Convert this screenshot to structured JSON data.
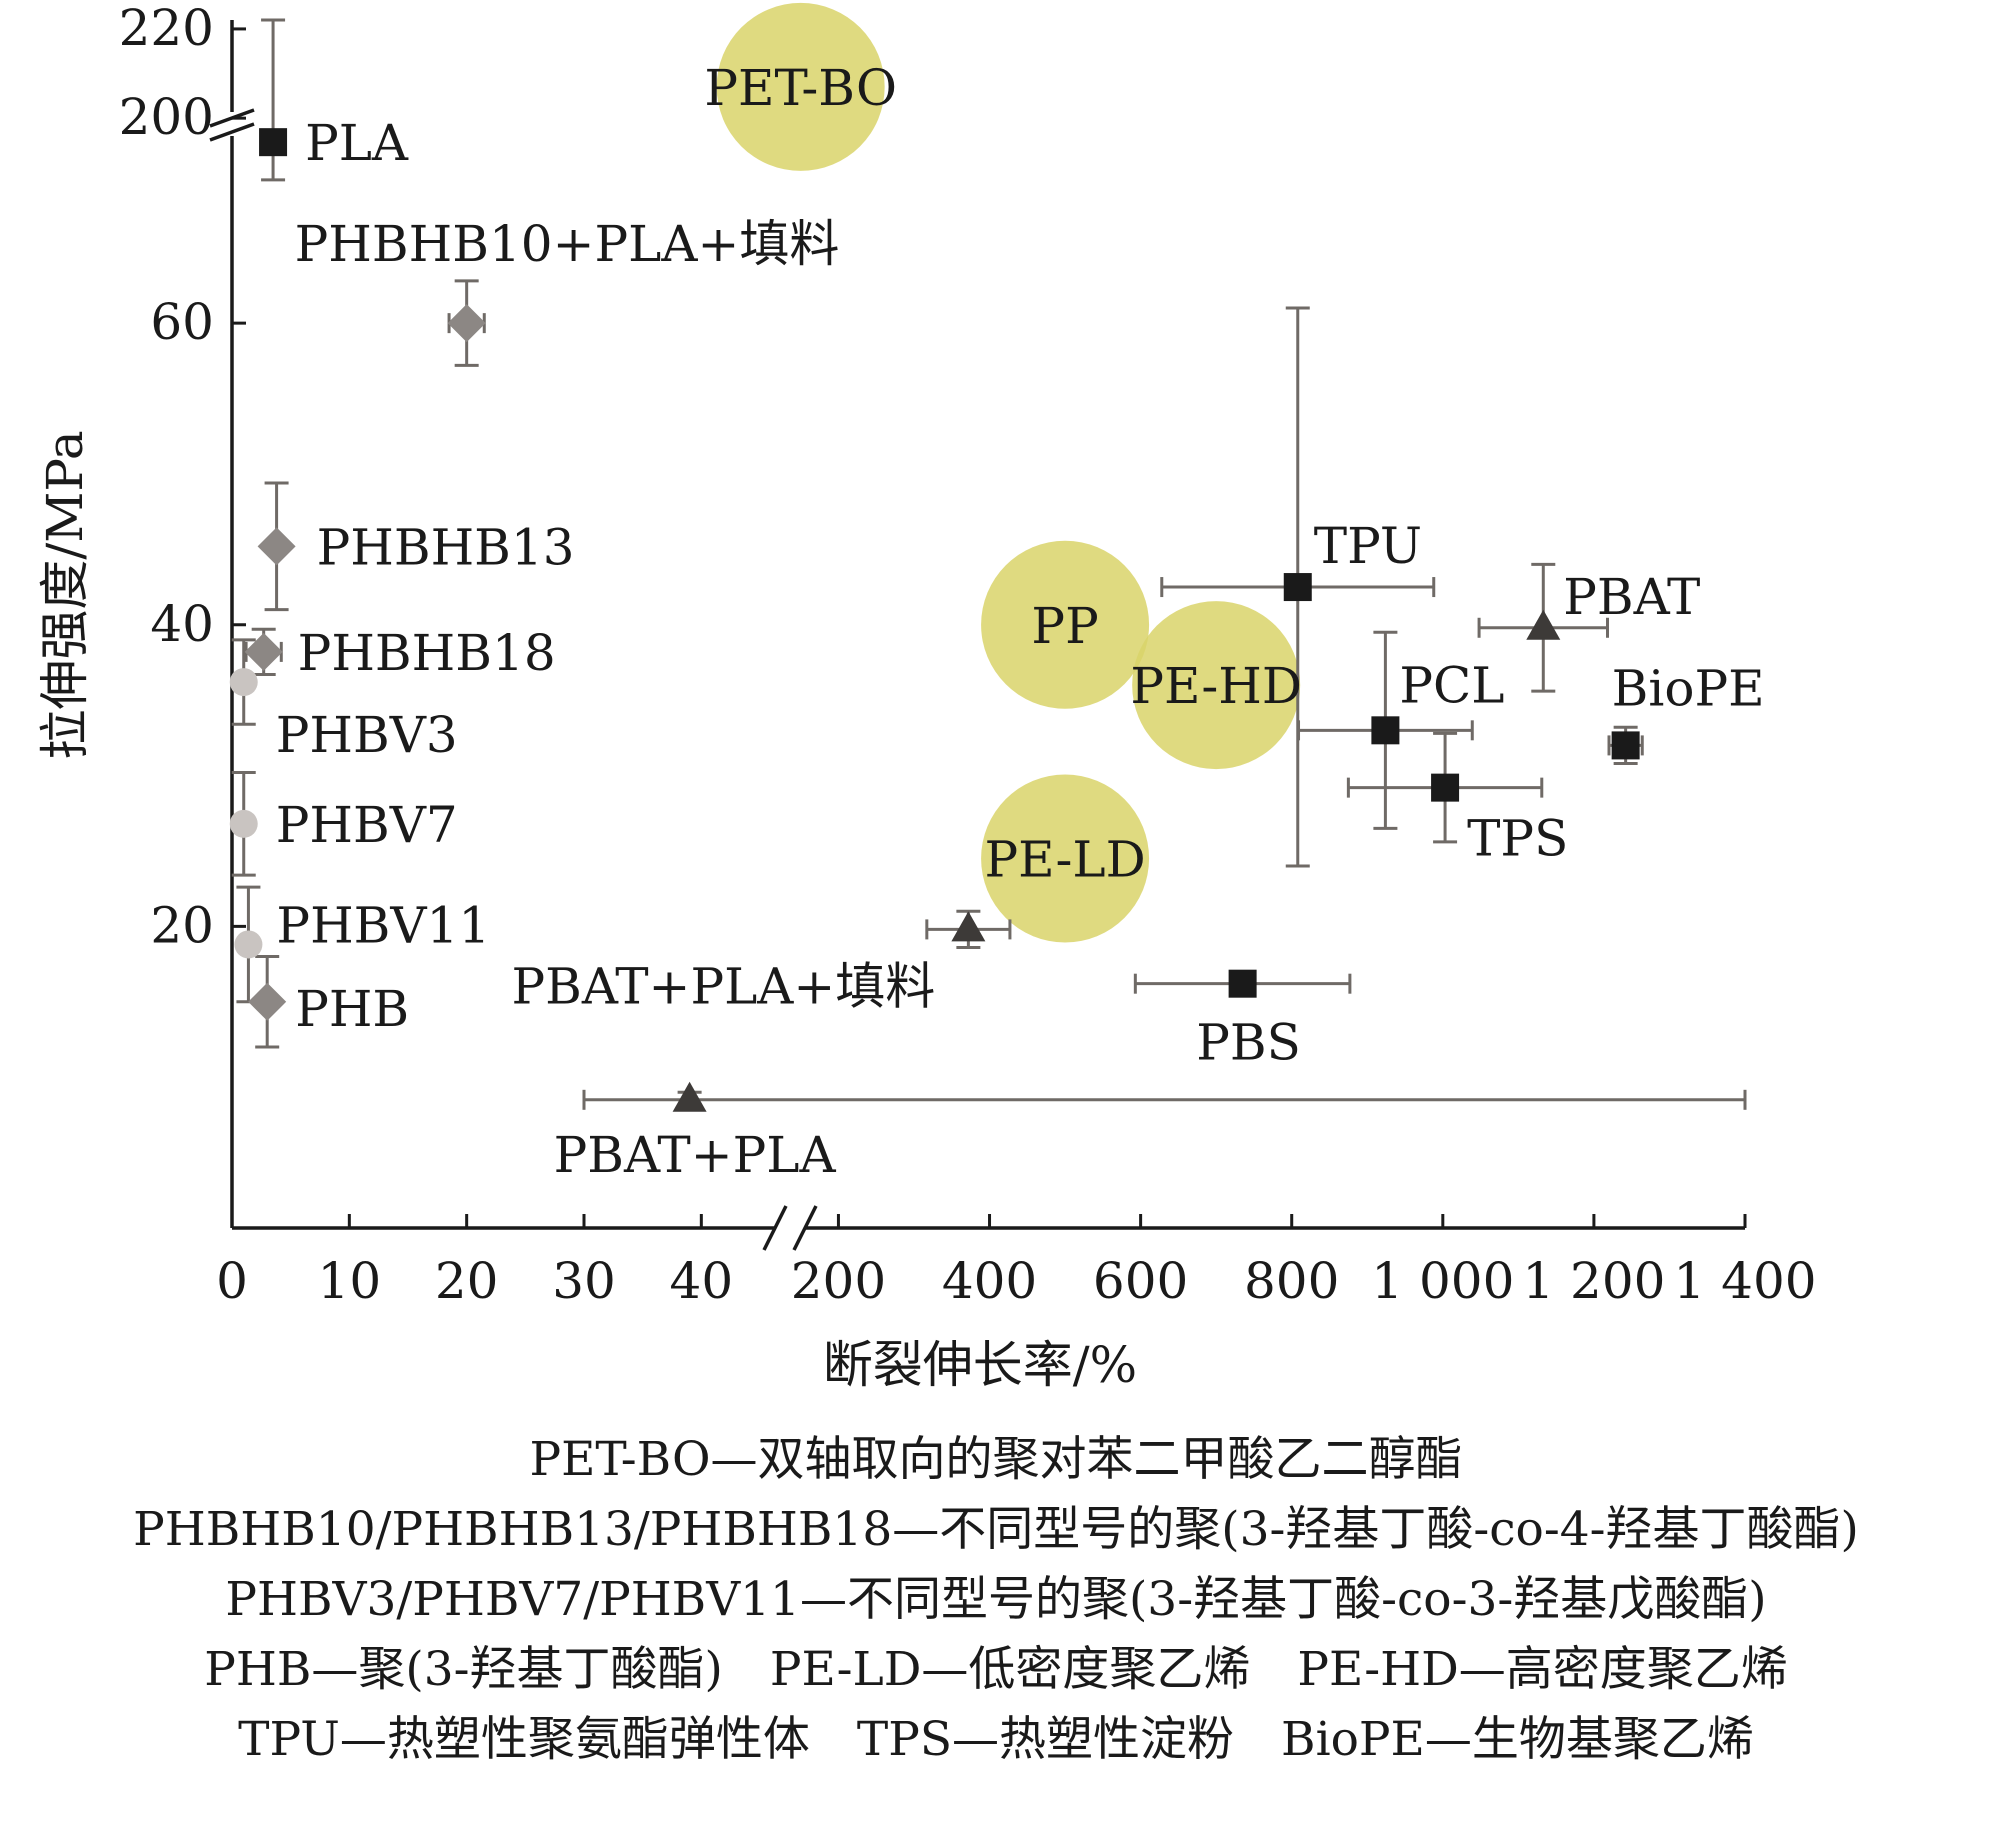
{
  "chart_data": {
    "type": "scatter",
    "title": "",
    "xlabel": "断裂伸长率/%",
    "ylabel": "拉伸强度/MPa",
    "x_axis": {
      "segments": [
        {
          "range": [
            0,
            45
          ],
          "ticks": [
            0,
            10,
            20,
            30,
            40
          ],
          "tick_labels": [
            "0",
            "10",
            "20",
            "30",
            "40"
          ]
        },
        {
          "range": [
            120,
            1400
          ],
          "ticks": [
            200,
            400,
            600,
            800,
            1000,
            1200,
            1400
          ],
          "tick_labels": [
            "200",
            "400",
            "600",
            "800",
            "1 000",
            "1 200",
            "1 400"
          ]
        }
      ],
      "broken": true
    },
    "y_axis": {
      "segments": [
        {
          "range": [
            0,
            74
          ],
          "ticks": [
            20,
            40,
            60
          ],
          "tick_labels": [
            "20",
            "40",
            "60"
          ]
        },
        {
          "range": [
            196,
            222
          ],
          "ticks": [
            200,
            220
          ],
          "tick_labels": [
            "200",
            "220"
          ]
        }
      ],
      "broken": true
    },
    "grid": false,
    "series": [
      {
        "marker": "square",
        "color": "#1a1a1a",
        "points": [
          {
            "label": "PLA",
            "x": 3.5,
            "y": 72,
            "xerr": 1,
            "yerr": 2.5
          },
          {
            "label": "TPU",
            "x": 808,
            "y": 42.5,
            "xerr": 180,
            "yerr": 18.5
          },
          {
            "label": "PCL",
            "x": 924,
            "y": 33,
            "xerr": 115,
            "yerr": 6.5
          },
          {
            "label": "TPS",
            "x": 1003,
            "y": 29.2,
            "xerr": 128,
            "yerr": 3.6
          },
          {
            "label": "BioPE",
            "x": 1242,
            "y": 32,
            "xerr": 22,
            "yerr": 1.2
          },
          {
            "label": "PBS",
            "x": 735,
            "y": 16.2,
            "xerr": 142,
            "yerr": 0.8
          }
        ]
      },
      {
        "marker": "diamond",
        "color": "#8c8784",
        "points": [
          {
            "label": "PHBHB10+PLA+填料",
            "x": 20,
            "y": 60,
            "xerr": 1.5,
            "yerr": 2.8
          },
          {
            "label": "PHBHB13",
            "x": 3.8,
            "y": 45.2,
            "xerr": 0.5,
            "yerr": 4.2
          },
          {
            "label": "PHBHB18",
            "x": 2.7,
            "y": 38.2,
            "xerr": 1.5,
            "yerr": 1.5
          },
          {
            "label": "PHB",
            "x": 3,
            "y": 15,
            "xerr": 0.5,
            "yerr": 3
          }
        ]
      },
      {
        "marker": "circle",
        "color": "#c9c4c1",
        "points": [
          {
            "label": "PHBV3",
            "x": 1,
            "y": 36.2,
            "xerr": 0.5,
            "yerr": 2.8
          },
          {
            "label": "PHBV7",
            "x": 1,
            "y": 26.8,
            "xerr": 0.5,
            "yerr": 3.4
          },
          {
            "label": "PHBV11",
            "x": 1.4,
            "y": 18.8,
            "xerr": 0.5,
            "yerr": 3.8
          }
        ]
      },
      {
        "marker": "triangle",
        "color": "#3d3a38",
        "points": [
          {
            "label": "PBAT",
            "x": 1133,
            "y": 39.8,
            "xerr": 85,
            "yerr": 4.2
          },
          {
            "label": "PBAT+PLA+填料",
            "x": 372,
            "y": 19.8,
            "xerr": 55,
            "yerr": 1.2
          },
          {
            "label": "PBAT+PLA",
            "x": 39,
            "y": 8.5,
            "xerr": 9,
            "yerr": 0.5
          }
        ]
      },
      {
        "marker": "bubble",
        "color": "#d9d36a",
        "points": [
          {
            "label": "PET-BO",
            "x": 150,
            "y": 207
          },
          {
            "label": "PP",
            "x": 500,
            "y": 40
          },
          {
            "label": "PE-HD",
            "x": 700,
            "y": 36
          },
          {
            "label": "PE-LD",
            "x": 500,
            "y": 24.5
          }
        ]
      }
    ]
  },
  "legend_lines": [
    "PET-BO—双轴取向的聚对苯二甲酸乙二醇酯",
    "PHBHB10/PHBHB13/PHBHB18—不同型号的聚(3-羟基丁酸-co-4-羟基丁酸酯)",
    "PHBV3/PHBV7/PHBV11—不同型号的聚(3-羟基丁酸-co-3-羟基戊酸酯)",
    "PHB—聚(3-羟基丁酸酯)　PE-LD—低密度聚乙烯　PE-HD—高密度聚乙烯",
    "TPU—热塑性聚氨酯弹性体　TPS—热塑性淀粉　BioPE—生物基聚乙烯"
  ]
}
